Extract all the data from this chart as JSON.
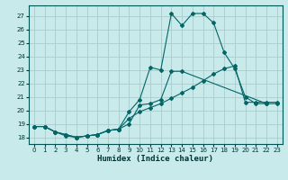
{
  "xlabel": "Humidex (Indice chaleur)",
  "bg_color": "#c8eaea",
  "grid_color": "#aacccc",
  "line_color": "#006666",
  "xlim": [
    -0.5,
    23.5
  ],
  "ylim": [
    17.5,
    27.8
  ],
  "xticks": [
    0,
    1,
    2,
    3,
    4,
    5,
    6,
    7,
    8,
    9,
    10,
    11,
    12,
    13,
    14,
    15,
    16,
    17,
    18,
    19,
    20,
    21,
    22,
    23
  ],
  "yticks": [
    18,
    19,
    20,
    21,
    22,
    23,
    24,
    25,
    26,
    27
  ],
  "line1_x": [
    0,
    1,
    2,
    3,
    4,
    5,
    6,
    7,
    8,
    9,
    10,
    11,
    12,
    13,
    14,
    22,
    23
  ],
  "line1_y": [
    18.8,
    18.8,
    18.4,
    18.1,
    18.0,
    18.1,
    18.2,
    18.5,
    18.6,
    19.0,
    20.4,
    20.5,
    20.8,
    22.9,
    22.9,
    20.5,
    20.5
  ],
  "line2_x": [
    0,
    1,
    2,
    3,
    4,
    5,
    6,
    7,
    8,
    9,
    10,
    11,
    12,
    13,
    14,
    15,
    16,
    17,
    18,
    19,
    20,
    21,
    22
  ],
  "line2_y": [
    18.8,
    18.8,
    18.4,
    18.2,
    18.0,
    18.1,
    18.2,
    18.5,
    18.6,
    19.9,
    20.8,
    23.2,
    23.0,
    27.2,
    26.3,
    27.2,
    27.2,
    26.5,
    24.3,
    23.1,
    21.0,
    20.5,
    20.5
  ],
  "line3_x": [
    0,
    1,
    2,
    3,
    4,
    5,
    6,
    7,
    8,
    9,
    10,
    11,
    12,
    13,
    14,
    15,
    16,
    17,
    18,
    19,
    20,
    21,
    22,
    23
  ],
  "line3_y": [
    18.8,
    18.8,
    18.4,
    18.2,
    18.0,
    18.1,
    18.2,
    18.5,
    18.6,
    19.4,
    19.9,
    20.2,
    20.5,
    20.9,
    21.3,
    21.7,
    22.2,
    22.7,
    23.1,
    23.3,
    20.6,
    20.6,
    20.6,
    20.6
  ]
}
